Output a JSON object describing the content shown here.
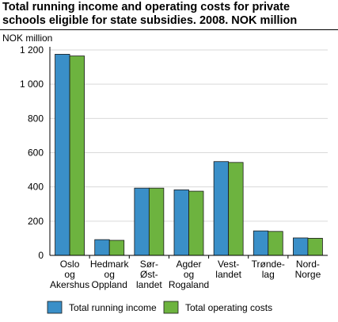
{
  "chart_data": {
    "type": "bar",
    "title": "Total running income and operating costs for private schools eligible for state subsidies. 2008. NOK million",
    "ylabel": "NOK million",
    "xlabel": "",
    "ylim": [
      0,
      1200
    ],
    "yticks": [
      "0",
      "200",
      "400",
      "600",
      "800",
      "1 000",
      "1 200"
    ],
    "categories": [
      [
        "Oslo",
        "og",
        "Akershus"
      ],
      [
        "Hedmark",
        "og",
        "Oppland"
      ],
      [
        "Sør-",
        "Øst-",
        "landet"
      ],
      [
        "Agder",
        "og",
        "Rogaland"
      ],
      [
        "Vest-",
        "landet"
      ],
      [
        "Trønde-",
        "lag"
      ],
      [
        "Nord-",
        "Norge"
      ]
    ],
    "series": [
      {
        "name": "Total running income",
        "color": "#3a8fc8",
        "values": [
          1175,
          92,
          393,
          383,
          548,
          143,
          102
        ]
      },
      {
        "name": "Total operating costs",
        "color": "#6db33f",
        "values": [
          1165,
          88,
          393,
          375,
          543,
          140,
          100
        ]
      }
    ],
    "grid": true,
    "legend_position": "bottom"
  }
}
